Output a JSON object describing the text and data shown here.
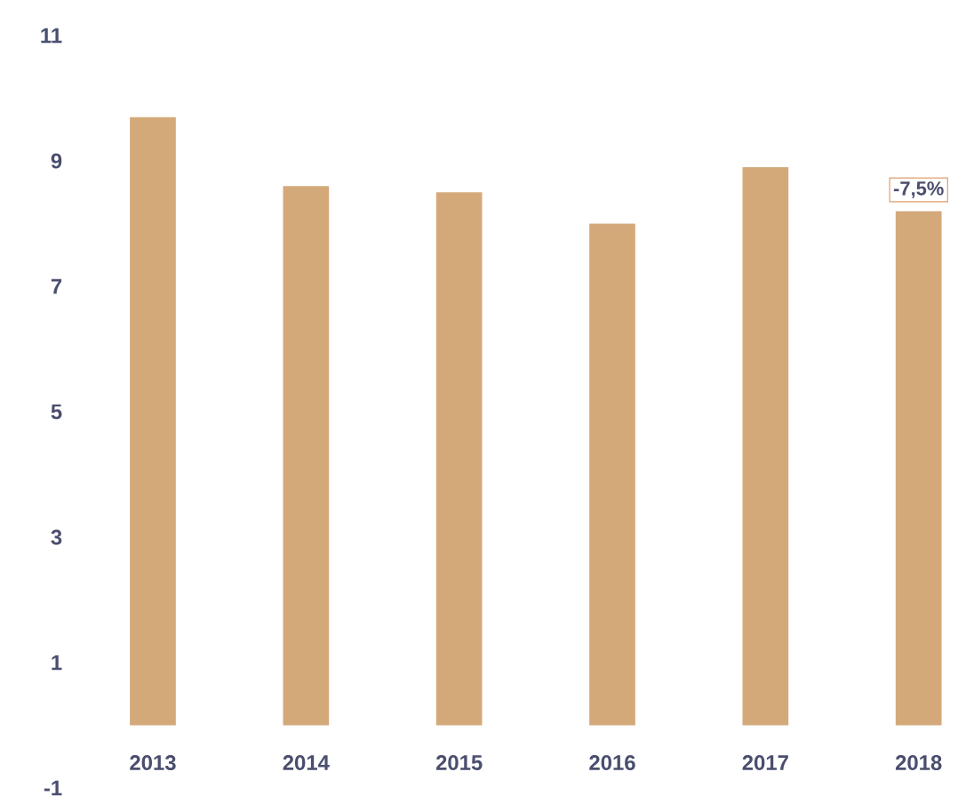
{
  "chart_data": {
    "type": "bar",
    "categories": [
      "2013",
      "2014",
      "2015",
      "2016",
      "2017",
      "2018"
    ],
    "values": [
      9.7,
      8.6,
      8.5,
      8.0,
      8.9,
      8.2
    ],
    "color": "#d4a97a",
    "ylim": [
      -1,
      11
    ],
    "yticks": [
      -1,
      1,
      3,
      5,
      7,
      9,
      11
    ],
    "grid": false,
    "annotations": [
      {
        "text": "-7,5%",
        "x": "2018",
        "y": 8.2
      }
    ]
  }
}
